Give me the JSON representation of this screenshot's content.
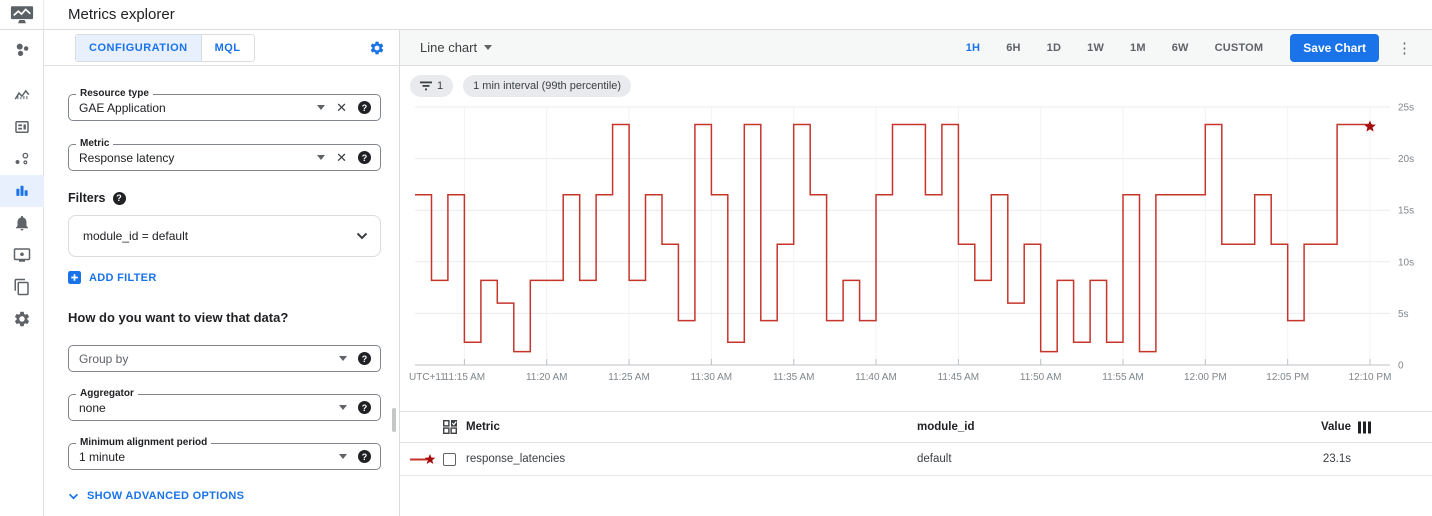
{
  "header": {
    "title": "Metrics explorer"
  },
  "icons": {
    "clear": "✕",
    "help": "?",
    "kebab": "⋮"
  },
  "sidebar": {
    "items": [
      "overview",
      "dashboards",
      "dashboard-cards",
      "services",
      "metrics-explorer",
      "alerting",
      "uptime-checks",
      "groups",
      "settings"
    ],
    "active_item": "metrics-explorer"
  },
  "config": {
    "tabs": [
      {
        "label": "CONFIGURATION",
        "active": true
      },
      {
        "label": "MQL",
        "active": false
      }
    ],
    "fields": {
      "resource_type": {
        "label": "Resource type",
        "value": "GAE Application"
      },
      "metric": {
        "label": "Metric",
        "value": "Response latency"
      },
      "group_by": {
        "placeholder": "Group by"
      },
      "aggregator": {
        "label": "Aggregator",
        "value": "none"
      },
      "min_alignment_period": {
        "label": "Minimum alignment period",
        "value": "1 minute"
      }
    },
    "filters": {
      "title": "Filters",
      "items": [
        "module_id = default"
      ],
      "add_button": "ADD FILTER"
    },
    "view_question": "How do you want to view that data?",
    "advanced_toggle": "SHOW ADVANCED OPTIONS"
  },
  "chart_header": {
    "chart_type": "Line chart",
    "time_ranges": [
      "1H",
      "6H",
      "1D",
      "1W",
      "1M",
      "6W",
      "CUSTOM"
    ],
    "active_range": "1H",
    "save_button": "Save Chart"
  },
  "chips": {
    "filter_count": "1",
    "interval": "1 min interval (99th percentile)"
  },
  "chart_data": {
    "type": "line",
    "step": true,
    "title": "",
    "xlabel": "",
    "ylabel": "",
    "ylim": [
      0,
      25
    ],
    "grid": "horizontal",
    "timezone_label": "UTC+11",
    "y_ticks": [
      {
        "label": "25s",
        "v": 25
      },
      {
        "label": "20s",
        "v": 20
      },
      {
        "label": "15s",
        "v": 15
      },
      {
        "label": "10s",
        "v": 10
      },
      {
        "label": "5s",
        "v": 5
      },
      {
        "label": "0",
        "v": 0
      }
    ],
    "x_ticks": [
      {
        "label": "11:15 AM",
        "t": 3
      },
      {
        "label": "11:20 AM",
        "t": 8
      },
      {
        "label": "11:25 AM",
        "t": 13
      },
      {
        "label": "11:30 AM",
        "t": 18
      },
      {
        "label": "11:35 AM",
        "t": 23
      },
      {
        "label": "11:40 AM",
        "t": 28
      },
      {
        "label": "11:45 AM",
        "t": 33
      },
      {
        "label": "11:50 AM",
        "t": 38
      },
      {
        "label": "11:55 AM",
        "t": 43
      },
      {
        "label": "12:00 PM",
        "t": 48
      },
      {
        "label": "12:05 PM",
        "t": 53
      },
      {
        "label": "12:10 PM",
        "t": 58
      }
    ],
    "series": [
      {
        "name": "response_latencies",
        "color": "#c5352b",
        "start_time": "11:12 AM",
        "interval_minutes": 1,
        "unit": "s",
        "values": [
          16.5,
          8.2,
          16.5,
          2.2,
          8.2,
          6,
          1.3,
          8.2,
          8.2,
          16.5,
          8.2,
          16.5,
          23.3,
          8.2,
          16.5,
          11.7,
          4.3,
          23.3,
          16.5,
          2.2,
          23.3,
          4.3,
          11.7,
          23.3,
          16.5,
          4.3,
          8.2,
          4.3,
          16.5,
          23.3,
          23.3,
          16.5,
          23.3,
          11.7,
          8.2,
          16.5,
          6,
          11.7,
          1.3,
          8.2,
          2.2,
          8.2,
          2.2,
          16.5,
          1.3,
          16.5,
          16.5,
          16.5,
          23.3,
          11.7,
          11.7,
          16.5,
          11.7,
          4.3,
          11.7,
          11.7,
          23.3,
          23.3,
          23.1
        ]
      }
    ],
    "end_marker": {
      "shape": "star",
      "color": "#a50e0e",
      "value": 23.1
    }
  },
  "table": {
    "columns": [
      "Metric",
      "module_id",
      "Value"
    ],
    "rows": [
      {
        "metric": "response_latencies",
        "module_id": "default",
        "value": "23.1s"
      }
    ]
  },
  "colors": {
    "accent": "#1a73e8",
    "active_tab_bg": "#e8f0fe",
    "line": "#c5352b",
    "star": "#a50e0e"
  }
}
